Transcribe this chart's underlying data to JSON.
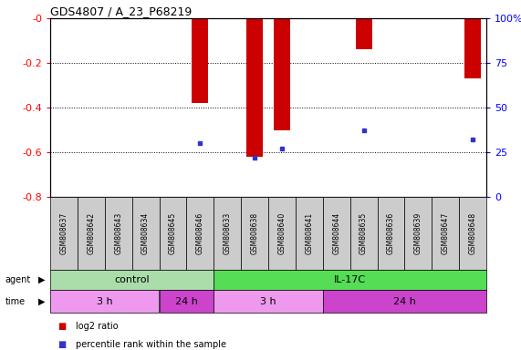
{
  "title": "GDS4807 / A_23_P68219",
  "samples": [
    "GSM808637",
    "GSM808642",
    "GSM808643",
    "GSM808634",
    "GSM808645",
    "GSM808646",
    "GSM808633",
    "GSM808638",
    "GSM808640",
    "GSM808641",
    "GSM808644",
    "GSM808635",
    "GSM808636",
    "GSM808639",
    "GSM808647",
    "GSM808648"
  ],
  "log2_ratio": [
    0,
    0,
    0,
    0,
    0,
    -0.38,
    0,
    -0.62,
    -0.5,
    0,
    0,
    -0.14,
    0,
    0,
    0,
    -0.27
  ],
  "percentile": [
    null,
    null,
    null,
    null,
    null,
    30,
    null,
    22,
    27,
    null,
    null,
    37,
    null,
    null,
    null,
    32
  ],
  "ylim_left": [
    -0.8,
    0
  ],
  "ylim_right": [
    0,
    100
  ],
  "yticks_left": [
    0,
    -0.2,
    -0.4,
    -0.6,
    -0.8
  ],
  "yticks_right": [
    0,
    25,
    50,
    75,
    100
  ],
  "bar_color": "#cc0000",
  "dot_color": "#3333cc",
  "agent_groups": [
    {
      "label": "control",
      "start": 0,
      "end": 6,
      "color": "#aaddaa"
    },
    {
      "label": "IL-17C",
      "start": 6,
      "end": 16,
      "color": "#55dd55"
    }
  ],
  "time_groups": [
    {
      "label": "3 h",
      "start": 0,
      "end": 4,
      "color": "#ee99ee"
    },
    {
      "label": "24 h",
      "start": 4,
      "end": 6,
      "color": "#cc44cc"
    },
    {
      "label": "3 h",
      "start": 6,
      "end": 10,
      "color": "#ee99ee"
    },
    {
      "label": "24 h",
      "start": 10,
      "end": 16,
      "color": "#cc44cc"
    }
  ],
  "legend_bar_color": "#cc0000",
  "legend_dot_color": "#3333cc",
  "background_color": "#ffffff",
  "tick_label_bg": "#cccccc",
  "grid_color": "#000000"
}
